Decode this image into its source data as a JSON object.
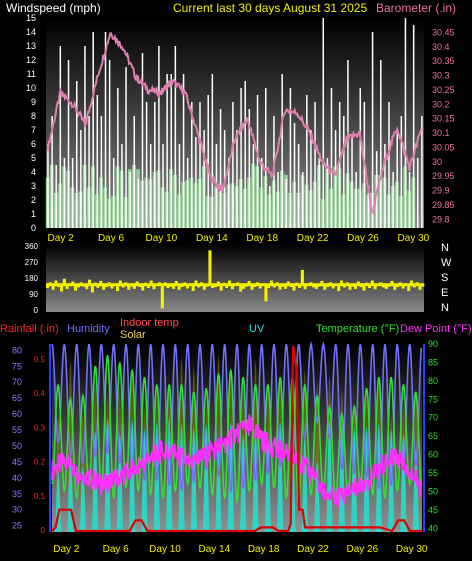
{
  "header": {
    "title": "Current last 30 days August 31 2025"
  },
  "chart_data": [
    {
      "type": "line",
      "panel": "wind-barometer",
      "left_axis_label": "Windspeed (mph)",
      "right_axis_label": "Barometer (.in)",
      "left_ticks": [
        0,
        1,
        2,
        3,
        4,
        5,
        6,
        7,
        8,
        9,
        10,
        11,
        12,
        13,
        14,
        15
      ],
      "right_ticks": [
        "29.8",
        "29.85",
        "29.9",
        "29.95",
        "30",
        "30.05",
        "30.1",
        "30.15",
        "30.2",
        "30.25",
        "30.3",
        "30.35",
        "30.4",
        "30.45"
      ],
      "ylim_left": [
        0,
        15
      ],
      "ylim_right": [
        29.77,
        30.5
      ],
      "x_ticks": [
        "Day 2",
        "Day 6",
        "Day 10",
        "Day 14",
        "Day 18",
        "Day 22",
        "Day 26",
        "Day 30"
      ],
      "series": [
        {
          "name": "",
          "kind": "gust-bars",
          "color": "#ffffff",
          "values": [
            6,
            8,
            4.5,
            13,
            5,
            12,
            5,
            10.5,
            7,
            13,
            8,
            14,
            9.5,
            8,
            14,
            12,
            5,
            10,
            6,
            11.5,
            4,
            8,
            3.5,
            12.5,
            9,
            6,
            9,
            13,
            6,
            11,
            11,
            13,
            6,
            11,
            5,
            9,
            6.5,
            9,
            7,
            9.5,
            11,
            6,
            8.5,
            7,
            5,
            9,
            7,
            10,
            10.5,
            8.5,
            6,
            9.5,
            5,
            10,
            3,
            8,
            4,
            11,
            3.5,
            10,
            7.5,
            6,
            4,
            9.5,
            7,
            9,
            5,
            15,
            5,
            10,
            7,
            9,
            8,
            12,
            6.5,
            4,
            10,
            9,
            3,
            14,
            5.5,
            12,
            6,
            9,
            4,
            7,
            8,
            15,
            4,
            14.5,
            5,
            8
          ]
        },
        {
          "name": "",
          "kind": "avg-bars",
          "color": "#a0e0a0",
          "values": [
            3.6,
            4.5,
            2.5,
            3.2,
            4.4,
            4.1,
            2.9,
            2.5,
            2.6,
            4.5,
            2.9,
            4.4,
            2.4,
            3.6,
            2.9,
            2.1,
            2.3,
            4.4,
            4.1,
            2.2,
            4.2,
            4.5,
            4.2,
            3.4,
            3.6,
            3.5,
            4,
            4.1,
            2.9,
            2.6,
            4.2,
            3.8,
            2.4,
            3.3,
            3.4,
            3.6,
            3.2,
            3.5,
            4.4,
            2.3,
            2.2,
            3,
            2.6,
            2.5,
            3.1,
            3.2,
            3,
            3.5,
            2.8,
            3.6,
            4.6,
            4.4,
            2.9,
            3.7,
            2.4,
            3.4,
            2.6,
            4.1,
            3.8,
            2.5,
            3.3,
            2.5,
            3.8,
            3.1,
            2.7,
            3.3,
            4.5,
            2.1,
            4.4,
            2.8,
            4.4,
            4.3,
            2.4,
            3.9,
            3.3,
            2.8,
            2.8,
            3.2,
            2.4,
            2.5,
            3.8,
            3.8,
            3.6,
            2.4,
            3,
            3.3,
            2.3,
            4.4,
            2.7,
            3.6
          ]
        },
        {
          "name": "",
          "kind": "barometer-line",
          "color": "#e080b0",
          "x": [
            1,
            2,
            3,
            4,
            5,
            6,
            7,
            8,
            9,
            10,
            11,
            12,
            13,
            14,
            15,
            16,
            17,
            18,
            19,
            20,
            21,
            22,
            23,
            24,
            25,
            26,
            27,
            28,
            29,
            30,
            31
          ],
          "values": [
            30.05,
            30.24,
            30.2,
            30.13,
            30.3,
            30.45,
            30.4,
            30.3,
            30.25,
            30.24,
            30.28,
            30.24,
            30.1,
            29.95,
            29.9,
            30.08,
            30.15,
            30.0,
            29.95,
            30.18,
            30.17,
            30.1,
            30.0,
            29.95,
            30.08,
            30.1,
            29.82,
            30.0,
            30.12,
            29.98,
            30.12
          ]
        }
      ]
    },
    {
      "type": "line",
      "panel": "wind-direction",
      "right_axis_label": [
        "N",
        "W",
        "S",
        "E",
        "N"
      ],
      "left_ticks": [
        0,
        90,
        180,
        270,
        360
      ],
      "ylim": [
        0,
        360
      ],
      "series": [
        {
          "name": "",
          "color": "#f0f000",
          "values": [
            135,
            150,
            125,
            160,
            140,
            115,
            170,
            130,
            145,
            155,
            120,
            138,
            150,
            142,
            128,
            165,
            110,
            148,
            136,
            158,
            125,
            140,
            150,
            132,
            145,
            118,
            160,
            138,
            150,
            125,
            142,
            130,
            155,
            140,
            120,
            148,
            135,
            160,
            128,
            145,
            150,
            20,
            150,
            135,
            142,
            130,
            158,
            125,
            140,
            150,
            132,
            145,
            118,
            160,
            138,
            150,
            125,
            142,
            330,
            135,
            140,
            155,
            120,
            148,
            135,
            160,
            128,
            145,
            150,
            115,
            130,
            142,
            158,
            125,
            140,
            150,
            132,
            145,
            60,
            135,
            160,
            138,
            150,
            125,
            142,
            130,
            155,
            140,
            120,
            148,
            135,
            220,
            128,
            145,
            150,
            138,
            130,
            142,
            158,
            125,
            140,
            150,
            132,
            145,
            118,
            160,
            138,
            150,
            125,
            142,
            130,
            155,
            140,
            120,
            148,
            135,
            160,
            128,
            145,
            150,
            138,
            130,
            142,
            158,
            125,
            140,
            150,
            132,
            145,
            118,
            160,
            138,
            150,
            125,
            142
          ]
        }
      ]
    },
    {
      "type": "line",
      "panel": "temperature-humidity",
      "legend": [
        {
          "label": "Rainfall (.in)",
          "color": "#ff2020"
        },
        {
          "label": "Humidity",
          "color": "#7070ff"
        },
        {
          "label": "Indoor temp",
          "color": "#ff5050"
        },
        {
          "label": "Solar",
          "color": "#f0d060"
        },
        {
          "label": "UV",
          "color": "#20e0e0"
        },
        {
          "label": "Temperature (°F)",
          "color": "#30e030"
        },
        {
          "label": "Dew Point (°F)",
          "color": "#ff30ff"
        }
      ],
      "left_axis_ticks": [
        25,
        30,
        35,
        40,
        45,
        50,
        55,
        60,
        65,
        70,
        75,
        80
      ],
      "rain_ticks": [
        "0",
        "0.1",
        "0.2",
        "0.3",
        "0.4",
        "0.5"
      ],
      "right_axis_ticks": [
        40,
        45,
        50,
        55,
        60,
        65,
        70,
        75,
        80,
        85,
        90
      ],
      "ylim_left": [
        23,
        82
      ],
      "ylim_rain": [
        0,
        0.52
      ],
      "ylim_right": [
        39,
        90
      ],
      "x_ticks": [
        "Day 2",
        "Day 6",
        "Day 10",
        "Day 14",
        "Day 18",
        "Day 22",
        "Day 26",
        "Day 30"
      ],
      "series": [
        {
          "name": "Humidity",
          "color": "#7070ff",
          "daily_min": [
            52,
            50,
            44,
            45,
            48,
            47,
            42,
            40,
            38,
            40,
            35,
            37,
            40,
            45,
            36,
            35,
            38,
            40,
            42,
            45,
            50,
            55,
            60,
            45,
            40,
            42,
            38,
            35,
            40,
            45,
            42
          ],
          "daily_max": [
            82,
            82,
            82,
            82,
            82,
            82,
            82,
            82,
            82,
            82,
            82,
            82,
            82,
            82,
            82,
            82,
            82,
            82,
            82,
            82,
            82,
            82,
            82,
            82,
            82,
            82,
            82,
            82,
            82,
            82,
            82
          ]
        },
        {
          "name": "Temperature (°F)",
          "color": "#30e030",
          "daily_min": [
            52,
            50,
            48,
            52,
            50,
            48,
            51,
            50,
            49,
            48,
            50,
            52,
            51,
            49,
            48,
            47,
            50,
            52,
            51,
            48,
            47,
            49,
            50,
            48,
            50,
            51,
            49,
            48,
            50,
            52,
            50
          ],
          "daily_max": [
            80,
            78,
            72,
            80,
            88,
            86,
            84,
            82,
            80,
            78,
            80,
            78,
            76,
            80,
            84,
            82,
            80,
            78,
            80,
            82,
            80,
            78,
            74,
            72,
            70,
            76,
            80,
            82,
            80,
            78,
            76
          ]
        },
        {
          "name": "Dew Point (°F)",
          "color": "#ff30ff",
          "values": [
            56,
            58,
            55,
            54,
            52,
            53,
            55,
            57,
            59,
            61,
            60,
            58,
            59,
            61,
            63,
            66,
            68,
            64,
            62,
            60,
            58,
            55,
            50,
            48,
            50,
            52,
            54,
            58,
            60,
            56,
            50
          ]
        },
        {
          "name": "UV",
          "color": "#20e0e0",
          "daily_peak": [
            3.2,
            4.1,
            3.5,
            5.4,
            6.1,
            5.3,
            6.0,
            5.5,
            5.9,
            6.2,
            5.8,
            5.6,
            5.8,
            4.5,
            5.9,
            5.2,
            5.5,
            4.8,
            5.9,
            5.4,
            5.1,
            3.8,
            6.0,
            5.8,
            5.6,
            5.6,
            5.8,
            5.5,
            5.2,
            4.4,
            5.3
          ],
          "ylim": [
            0,
            10
          ]
        },
        {
          "name": "Rainfall (.in)",
          "color": "#e00000",
          "x": [
            0,
            0.3,
            0.6,
            1.6,
            2,
            6.5,
            7,
            7.5,
            8,
            13.5,
            14,
            17,
            17.5,
            18.5,
            19,
            19.8,
            20,
            20.2,
            20.5,
            20.7,
            21,
            21.2,
            21.5,
            26,
            26.5,
            27,
            27.5,
            28.5,
            29,
            29.5,
            30,
            31
          ],
          "values": [
            0,
            0.01,
            0.06,
            0.06,
            0,
            0,
            0.03,
            0.03,
            0,
            0,
            0,
            0,
            0.01,
            0.01,
            0,
            0,
            0.02,
            0.52,
            0.45,
            0.06,
            0.06,
            0.01,
            0.01,
            0.01,
            0.01,
            0.01,
            0.01,
            0,
            0.03,
            0.03,
            0,
            0
          ]
        }
      ]
    }
  ]
}
